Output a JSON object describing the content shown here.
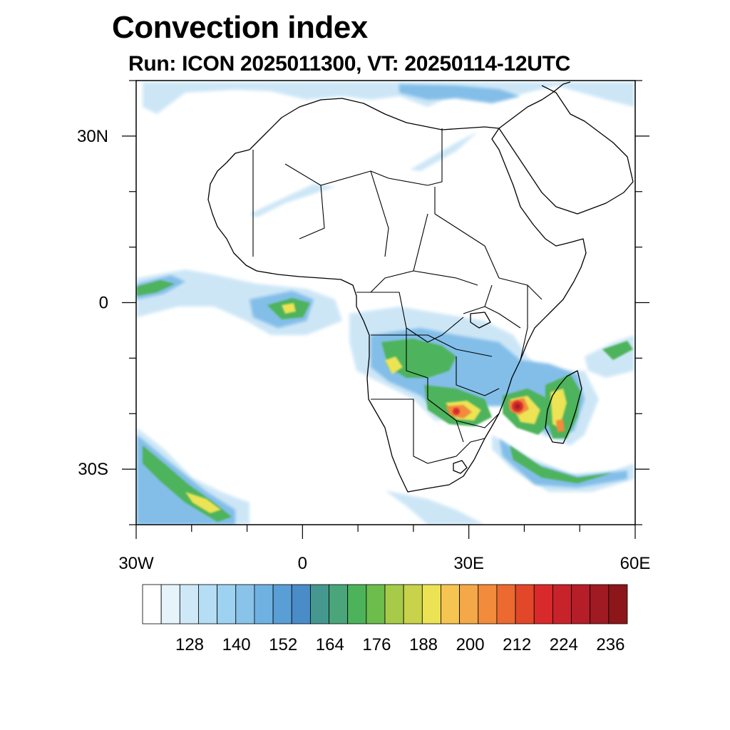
{
  "title": "Convection index",
  "subtitle": "Run: ICON 2025011300,  VT: 20250114-12UTC",
  "map": {
    "lon_range": [
      -30,
      60
    ],
    "lat_range": [
      -40,
      40
    ],
    "x_ticks": [
      {
        "lon": -30,
        "label": "30W"
      },
      {
        "lon": 0,
        "label": "0"
      },
      {
        "lon": 30,
        "label": "30E"
      },
      {
        "lon": 60,
        "label": "60E"
      }
    ],
    "y_ticks": [
      {
        "lat": 30,
        "label": "30N"
      },
      {
        "lat": 0,
        "label": "0"
      },
      {
        "lat": -30,
        "label": "30S"
      }
    ]
  },
  "colorbar": {
    "colors": [
      "#ffffff",
      "#e6f3fb",
      "#cfe8f7",
      "#b5ddf3",
      "#9dd2f1",
      "#89c3ea",
      "#6fb2e2",
      "#5a9ed6",
      "#4a8cc8",
      "#45988f",
      "#4aa57a",
      "#4db35b",
      "#6cbd4c",
      "#a7cb49",
      "#c8d24b",
      "#ece354",
      "#f6c451",
      "#f5a848",
      "#f28b3b",
      "#ec6930",
      "#e2472a",
      "#d82a2a",
      "#c8222b",
      "#b51d28",
      "#9f1a22",
      "#8c1619"
    ],
    "tick_labels": [
      "128",
      "140",
      "152",
      "164",
      "176",
      "188",
      "200",
      "212",
      "224",
      "236"
    ]
  },
  "field_colors": {
    "light_blue": "#c8e4f6",
    "blue": "#7fbce8",
    "mid_blue": "#5a9ed6",
    "green": "#4db35b",
    "yellow": "#ece354",
    "orange": "#f28b3b",
    "red": "#d82a2a",
    "dark_red": "#9f1a22"
  }
}
